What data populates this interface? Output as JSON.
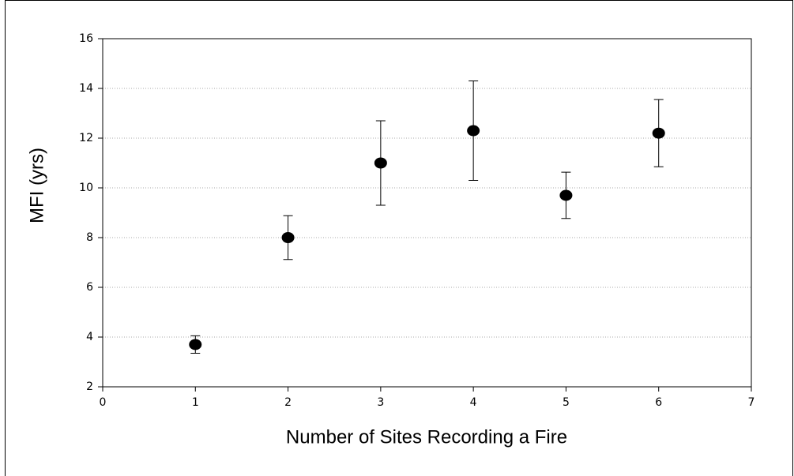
{
  "chart_data": {
    "type": "scatter",
    "x_label": "Number of Sites Recording a Fire",
    "y_label": "MFI (yrs)",
    "x": [
      1,
      2,
      3,
      4,
      5,
      6
    ],
    "values": [
      3.7,
      8.0,
      11.0,
      12.3,
      9.7,
      12.2
    ],
    "errors": [
      0.35,
      0.88,
      1.7,
      2.0,
      0.93,
      1.35
    ],
    "color": "#000000",
    "xlim": [
      0,
      7
    ],
    "xticks": [
      0,
      1,
      2,
      3,
      4,
      5,
      6,
      7
    ],
    "ylim": [
      2,
      16
    ],
    "yticks": [
      2,
      4,
      6,
      8,
      10,
      12,
      14,
      16
    ],
    "grid": true
  }
}
